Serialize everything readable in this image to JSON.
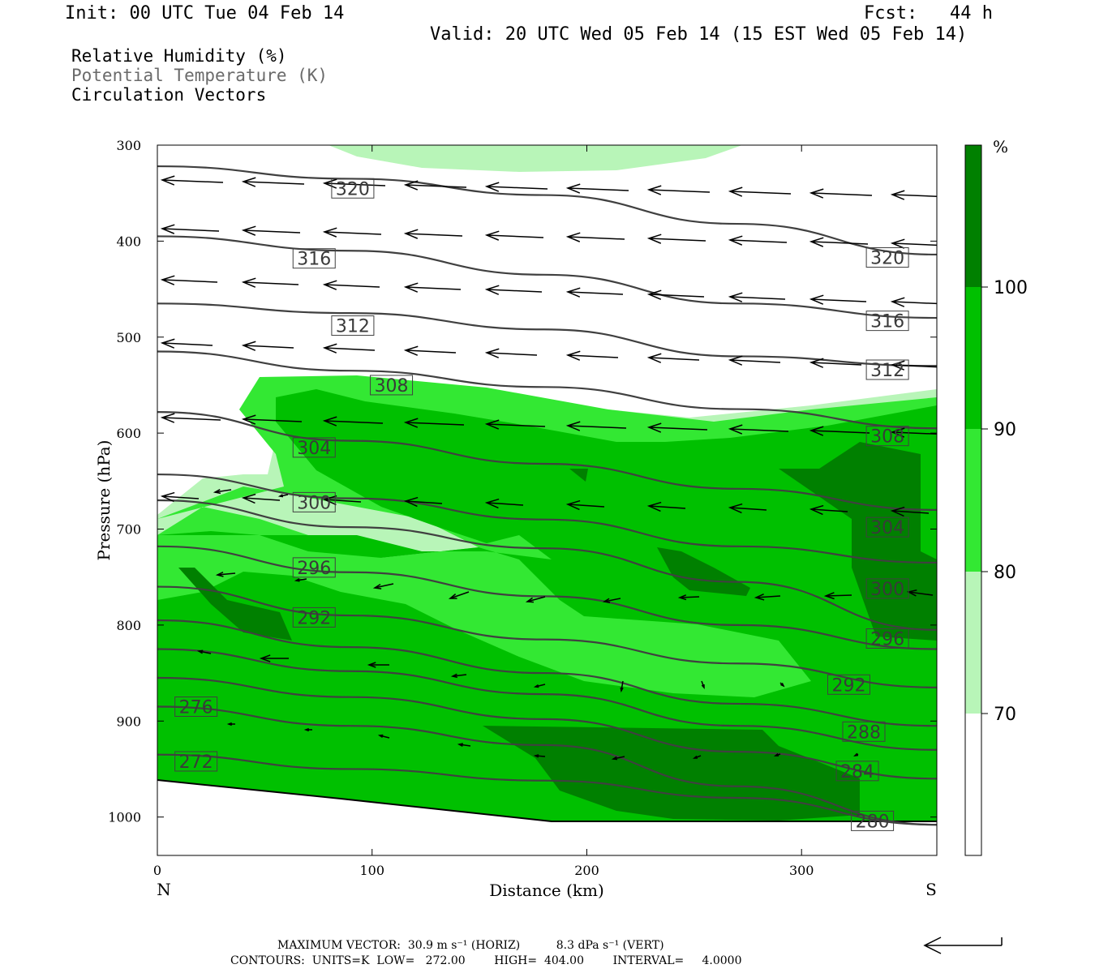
{
  "header": {
    "init": "Init: 00 UTC Tue 04 Feb 14",
    "fcst": "Fcst:   44 h",
    "valid": "Valid: 20 UTC Wed 05 Feb 14 (15 EST Wed 05 Feb 14)",
    "field1": "Relative Humidity (%)",
    "field2": "Potential Temperature (K)",
    "field3": "Circulation Vectors"
  },
  "colors": {
    "rh70": "#b8f5b8",
    "rh80": "#33e833",
    "rh90": "#00c000",
    "rh100": "#008000",
    "theta": "#404040"
  },
  "chart_data": {
    "type": "contour-cross-section",
    "xlabel": "Distance (km)",
    "ylabel": "Pressure (hPa)",
    "x_ticks": [
      0,
      100,
      200,
      300
    ],
    "y_ticks": [
      300,
      400,
      500,
      600,
      700,
      800,
      900,
      1000
    ],
    "xlim": [
      0,
      363
    ],
    "ylim": [
      1040,
      300
    ],
    "left_end": "N",
    "right_end": "S",
    "colorbar": {
      "unit": "%",
      "levels": [
        70,
        80,
        90,
        100
      ]
    },
    "theta_labels": [
      {
        "value": "320",
        "x": 91,
        "p": 345
      },
      {
        "value": "320",
        "x": 340,
        "p": 417
      },
      {
        "value": "316",
        "x": 73,
        "p": 418
      },
      {
        "value": "316",
        "x": 340,
        "p": 483
      },
      {
        "value": "312",
        "x": 91,
        "p": 488
      },
      {
        "value": "312",
        "x": 340,
        "p": 534
      },
      {
        "value": "308",
        "x": 109,
        "p": 550
      },
      {
        "value": "308",
        "x": 340,
        "p": 603
      },
      {
        "value": "304",
        "x": 73,
        "p": 615
      },
      {
        "value": "304",
        "x": 340,
        "p": 698
      },
      {
        "value": "300",
        "x": 73,
        "p": 672
      },
      {
        "value": "300",
        "x": 340,
        "p": 762
      },
      {
        "value": "296",
        "x": 73,
        "p": 740
      },
      {
        "value": "296",
        "x": 340,
        "p": 814
      },
      {
        "value": "292",
        "x": 73,
        "p": 792
      },
      {
        "value": "292",
        "x": 322,
        "p": 862
      },
      {
        "value": "288",
        "x": 329,
        "p": 911
      },
      {
        "value": "284",
        "x": 326,
        "p": 952
      },
      {
        "value": "280",
        "x": 333,
        "p": 1004
      },
      {
        "value": "276",
        "x": 18,
        "p": 885
      },
      {
        "value": "272",
        "x": 18,
        "p": 942
      }
    ],
    "theta_lines": [
      {
        "p": [
          322,
          335,
          352,
          382,
          414
        ]
      },
      {
        "p": [
          395,
          410,
          435,
          465,
          480
        ]
      },
      {
        "p": [
          465,
          475,
          492,
          520,
          530
        ]
      },
      {
        "p": [
          515,
          535,
          552,
          575,
          595
        ]
      },
      {
        "p": [
          578,
          608,
          632,
          658,
          680
        ]
      },
      {
        "p": [
          643,
          668,
          690,
          718,
          735
        ]
      },
      {
        "p": [
          670,
          698,
          720,
          755,
          805
        ]
      },
      {
        "p": [
          718,
          745,
          770,
          800,
          825
        ]
      },
      {
        "p": [
          760,
          790,
          815,
          840,
          865
        ]
      },
      {
        "p": [
          795,
          823,
          850,
          882,
          905
        ]
      },
      {
        "p": [
          825,
          848,
          872,
          905,
          930
        ]
      },
      {
        "p": [
          855,
          875,
          898,
          932,
          960
        ]
      },
      {
        "p": [
          885,
          905,
          925,
          968,
          1008
        ]
      },
      {
        "p": [
          935,
          950,
          962,
          980,
          1008
        ]
      }
    ],
    "theta_x": [
      0,
      90,
      180,
      270,
      363
    ]
  },
  "footer": {
    "maxvec": "MAXIMUM VECTOR:  30.9 m s⁻¹ (HORIZ)          8.3 dPa s⁻¹ (VERT)",
    "contours": "CONTOURS:  UNITS=K  LOW=   272.00        HIGH=  404.00        INTERVAL=     4.0000"
  }
}
